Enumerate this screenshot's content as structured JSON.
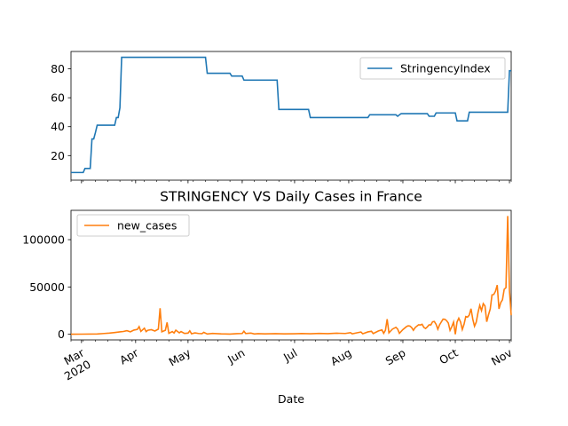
{
  "chart_data": [
    {
      "type": "line",
      "title": "",
      "xlabel": "",
      "ylabel": "",
      "yticks": [
        20,
        40,
        60,
        80
      ],
      "ylim": [
        3,
        92
      ],
      "xlim": [
        "2020-02-24",
        "2020-11-02"
      ],
      "grid": false,
      "legend_position": "top-right",
      "color": "#1f77b4",
      "series": [
        {
          "name": "StringencyIndex",
          "points": [
            [
              "2020-02-24",
              8.3
            ],
            [
              "2020-03-02",
              8.3
            ],
            [
              "2020-03-03",
              11.1
            ],
            [
              "2020-03-06",
              11.1
            ],
            [
              "2020-03-07",
              31.5
            ],
            [
              "2020-03-08",
              31.5
            ],
            [
              "2020-03-09",
              36.0
            ],
            [
              "2020-03-10",
              41.0
            ],
            [
              "2020-03-20",
              41.0
            ],
            [
              "2020-03-21",
              46.3
            ],
            [
              "2020-03-22",
              46.3
            ],
            [
              "2020-03-23",
              53.0
            ],
            [
              "2020-03-24",
              88.0
            ],
            [
              "2020-05-11",
              88.0
            ],
            [
              "2020-05-12",
              76.9
            ],
            [
              "2020-05-25",
              76.9
            ],
            [
              "2020-05-26",
              75.0
            ],
            [
              "2020-06-01",
              75.0
            ],
            [
              "2020-06-02",
              72.2
            ],
            [
              "2020-06-21",
              72.2
            ],
            [
              "2020-06-22",
              51.9
            ],
            [
              "2020-07-09",
              51.9
            ],
            [
              "2020-07-10",
              46.3
            ],
            [
              "2020-08-12",
              46.3
            ],
            [
              "2020-08-13",
              48.2
            ],
            [
              "2020-08-28",
              48.2
            ],
            [
              "2020-08-29",
              47.2
            ],
            [
              "2020-08-30",
              48.2
            ],
            [
              "2020-08-31",
              49.0
            ],
            [
              "2020-09-15",
              49.0
            ],
            [
              "2020-09-16",
              47.2
            ],
            [
              "2020-09-19",
              47.2
            ],
            [
              "2020-09-20",
              49.5
            ],
            [
              "2020-10-01",
              49.5
            ],
            [
              "2020-10-02",
              44.0
            ],
            [
              "2020-10-08",
              44.0
            ],
            [
              "2020-10-09",
              50.0
            ],
            [
              "2020-10-31",
              50.0
            ],
            [
              "2020-11-01",
              78.7
            ],
            [
              "2020-11-02",
              78.7
            ]
          ]
        }
      ]
    },
    {
      "type": "line",
      "title": "STRINGENCY VS Daily Cases in France",
      "xlabel": "Date",
      "ylabel": "",
      "yticks": [
        0,
        50000,
        100000
      ],
      "ytick_labels": [
        "0",
        "50000",
        "100000"
      ],
      "ylim": [
        -6000,
        131000
      ],
      "xlim": [
        "2020-02-24",
        "2020-11-02"
      ],
      "xticks": [
        "2020-03-01",
        "2020-04-01",
        "2020-05-01",
        "2020-06-01",
        "2020-07-01",
        "2020-08-01",
        "2020-09-01",
        "2020-10-01",
        "2020-11-01"
      ],
      "xtick_labels": [
        "Mar\n2020",
        "Apr",
        "May",
        "Jun",
        "Jul",
        "Aug",
        "Sep",
        "Oct",
        "Nov"
      ],
      "grid": false,
      "legend_position": "top-left",
      "color": "#ff7f0e",
      "series": [
        {
          "name": "new_cases",
          "points": [
            [
              "2020-02-24",
              0
            ],
            [
              "2020-03-01",
              100
            ],
            [
              "2020-03-10",
              300
            ],
            [
              "2020-03-14",
              800
            ],
            [
              "2020-03-17",
              1200
            ],
            [
              "2020-03-20",
              1800
            ],
            [
              "2020-03-23",
              2500
            ],
            [
              "2020-03-25",
              2900
            ],
            [
              "2020-03-27",
              3800
            ],
            [
              "2020-03-29",
              2600
            ],
            [
              "2020-03-31",
              4400
            ],
            [
              "2020-04-02",
              5100
            ],
            [
              "2020-04-03",
              8000
            ],
            [
              "2020-04-04",
              3000
            ],
            [
              "2020-04-06",
              6400
            ],
            [
              "2020-04-07",
              2800
            ],
            [
              "2020-04-08",
              4200
            ],
            [
              "2020-04-10",
              4800
            ],
            [
              "2020-04-12",
              3400
            ],
            [
              "2020-04-14",
              5400
            ],
            [
              "2020-04-15",
              27500
            ],
            [
              "2020-04-16",
              2600
            ],
            [
              "2020-04-18",
              4200
            ],
            [
              "2020-04-19",
              12500
            ],
            [
              "2020-04-20",
              1000
            ],
            [
              "2020-04-22",
              2800
            ],
            [
              "2020-04-23",
              1300
            ],
            [
              "2020-04-24",
              4300
            ],
            [
              "2020-04-26",
              1500
            ],
            [
              "2020-04-27",
              2800
            ],
            [
              "2020-04-29",
              900
            ],
            [
              "2020-05-01",
              1200
            ],
            [
              "2020-05-02",
              3600
            ],
            [
              "2020-05-03",
              500
            ],
            [
              "2020-05-05",
              1400
            ],
            [
              "2020-05-07",
              800
            ],
            [
              "2020-05-09",
              600
            ],
            [
              "2020-05-10",
              2000
            ],
            [
              "2020-05-12",
              300
            ],
            [
              "2020-05-15",
              900
            ],
            [
              "2020-05-20",
              400
            ],
            [
              "2020-05-25",
              200
            ],
            [
              "2020-05-29",
              600
            ],
            [
              "2020-06-01",
              800
            ],
            [
              "2020-06-02",
              3200
            ],
            [
              "2020-06-03",
              800
            ],
            [
              "2020-06-06",
              1200
            ],
            [
              "2020-06-08",
              300
            ],
            [
              "2020-06-10",
              600
            ],
            [
              "2020-06-14",
              400
            ],
            [
              "2020-06-20",
              600
            ],
            [
              "2020-06-25",
              400
            ],
            [
              "2020-07-01",
              500
            ],
            [
              "2020-07-05",
              700
            ],
            [
              "2020-07-10",
              500
            ],
            [
              "2020-07-15",
              900
            ],
            [
              "2020-07-20",
              600
            ],
            [
              "2020-07-25",
              1100
            ],
            [
              "2020-07-30",
              800
            ],
            [
              "2020-08-02",
              1700
            ],
            [
              "2020-08-03",
              400
            ],
            [
              "2020-08-06",
              1600
            ],
            [
              "2020-08-08",
              2300
            ],
            [
              "2020-08-09",
              500
            ],
            [
              "2020-08-12",
              2500
            ],
            [
              "2020-08-14",
              3100
            ],
            [
              "2020-08-15",
              700
            ],
            [
              "2020-08-18",
              3500
            ],
            [
              "2020-08-20",
              4600
            ],
            [
              "2020-08-21",
              1000
            ],
            [
              "2020-08-22",
              4200
            ],
            [
              "2020-08-23",
              15900
            ],
            [
              "2020-08-24",
              1500
            ],
            [
              "2020-08-26",
              5400
            ],
            [
              "2020-08-28",
              7300
            ],
            [
              "2020-08-29",
              5400
            ],
            [
              "2020-08-30",
              1000
            ],
            [
              "2020-09-01",
              4900
            ],
            [
              "2020-09-03",
              8000
            ],
            [
              "2020-09-04",
              8900
            ],
            [
              "2020-09-05",
              8600
            ],
            [
              "2020-09-06",
              7100
            ],
            [
              "2020-09-07",
              4200
            ],
            [
              "2020-09-08",
              7000
            ],
            [
              "2020-09-09",
              8600
            ],
            [
              "2020-09-10",
              10000
            ],
            [
              "2020-09-11",
              9800
            ],
            [
              "2020-09-12",
              10500
            ],
            [
              "2020-09-13",
              7200
            ],
            [
              "2020-09-14",
              6100
            ],
            [
              "2020-09-15",
              7800
            ],
            [
              "2020-09-16",
              10000
            ],
            [
              "2020-09-17",
              9800
            ],
            [
              "2020-09-18",
              13200
            ],
            [
              "2020-09-19",
              13500
            ],
            [
              "2020-09-20",
              10500
            ],
            [
              "2020-09-21",
              5300
            ],
            [
              "2020-09-22",
              10000
            ],
            [
              "2020-09-23",
              13000
            ],
            [
              "2020-09-24",
              16000
            ],
            [
              "2020-09-25",
              15800
            ],
            [
              "2020-09-26",
              14400
            ],
            [
              "2020-09-27",
              11900
            ],
            [
              "2020-09-28",
              4100
            ],
            [
              "2020-09-29",
              8000
            ],
            [
              "2020-09-30",
              12800
            ],
            [
              "2020-10-01",
              0
            ],
            [
              "2020-10-02",
              12900
            ],
            [
              "2020-10-03",
              17000
            ],
            [
              "2020-10-04",
              13000
            ],
            [
              "2020-10-05",
              5000
            ],
            [
              "2020-10-06",
              10500
            ],
            [
              "2020-10-07",
              18700
            ],
            [
              "2020-10-08",
              18100
            ],
            [
              "2020-10-09",
              20300
            ],
            [
              "2020-10-10",
              27000
            ],
            [
              "2020-10-11",
              16000
            ],
            [
              "2020-10-12",
              8500
            ],
            [
              "2020-10-13",
              12900
            ],
            [
              "2020-10-14",
              22900
            ],
            [
              "2020-10-15",
              30600
            ],
            [
              "2020-10-16",
              25000
            ],
            [
              "2020-10-17",
              32400
            ],
            [
              "2020-10-18",
              29800
            ],
            [
              "2020-10-19",
              13200
            ],
            [
              "2020-10-20",
              20500
            ],
            [
              "2020-10-21",
              26700
            ],
            [
              "2020-10-22",
              41600
            ],
            [
              "2020-10-23",
              42000
            ],
            [
              "2020-10-24",
              45400
            ],
            [
              "2020-10-25",
              52000
            ],
            [
              "2020-10-26",
              26800
            ],
            [
              "2020-10-27",
              33400
            ],
            [
              "2020-10-28",
              36400
            ],
            [
              "2020-10-29",
              47600
            ],
            [
              "2020-10-30",
              49200
            ],
            [
              "2020-10-31",
              125000
            ],
            [
              "2020-11-01",
              46300
            ],
            [
              "2020-11-02",
              20100
            ]
          ]
        }
      ]
    }
  ]
}
